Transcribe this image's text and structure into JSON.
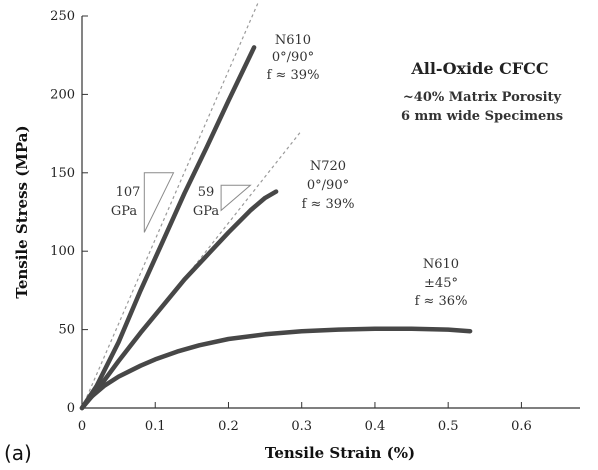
{
  "chart_data": {
    "type": "line",
    "panel_label": "(a)",
    "title": "All-Oxide CFCC",
    "subtitle_lines": [
      "~40% Matrix Porosity",
      "6 mm wide Specimens"
    ],
    "xlabel": "Tensile Strain (%)",
    "ylabel": "Tensile Stress (MPa)",
    "xlim": [
      0,
      0.68
    ],
    "ylim": [
      0,
      250
    ],
    "xticks": [
      "0",
      "0.1",
      "0.2",
      "0.3",
      "0.4",
      "0.5",
      "0.6"
    ],
    "yticks": [
      "0",
      "50",
      "100",
      "150",
      "200",
      "250"
    ],
    "grid": false,
    "series": [
      {
        "name": "N610 0°/90° f ≈ 39%",
        "label_lines": [
          "N610",
          "0°/90°",
          "f ≈ 39%"
        ],
        "x": [
          0,
          0.02,
          0.05,
          0.08,
          0.11,
          0.14,
          0.17,
          0.2,
          0.235
        ],
        "y": [
          0,
          14,
          42,
          75,
          106,
          137,
          166,
          196,
          230
        ]
      },
      {
        "name": "N720 0°/90° f ≈ 39%",
        "label_lines": [
          "N720",
          "0°/90°",
          "f ≈ 39%"
        ],
        "x": [
          0,
          0.02,
          0.05,
          0.08,
          0.11,
          0.14,
          0.17,
          0.2,
          0.23,
          0.25,
          0.265
        ],
        "y": [
          0,
          11,
          30,
          48,
          65,
          82,
          97,
          112,
          126,
          134,
          138
        ]
      },
      {
        "name": "N610 ±45° f ≈ 36%",
        "label_lines": [
          "N610",
          "±45°",
          "f ≈ 36%"
        ],
        "x": [
          0,
          0.01,
          0.03,
          0.05,
          0.08,
          0.1,
          0.13,
          0.16,
          0.2,
          0.25,
          0.3,
          0.35,
          0.4,
          0.45,
          0.5,
          0.53
        ],
        "y": [
          0,
          6,
          14,
          20,
          27,
          31,
          36,
          40,
          44,
          47,
          49,
          50,
          50.5,
          50.5,
          50,
          49
        ]
      }
    ],
    "modulus_lines": [
      {
        "x": [
          0,
          0.24
        ],
        "y": [
          0,
          258
        ]
      },
      {
        "x": [
          0,
          0.3
        ],
        "y": [
          0,
          177
        ]
      }
    ],
    "modulus_annotations": [
      {
        "value": "107",
        "unit": "GPa",
        "triangle": {
          "x0": 0.085,
          "x1": 0.125,
          "y0": 112,
          "y1": 150
        }
      },
      {
        "value": "59",
        "unit": "GPa",
        "triangle": {
          "x0": 0.19,
          "x1": 0.23,
          "y0": 126,
          "y1": 142
        }
      }
    ],
    "colors": {
      "curve": "#474747",
      "reference": "#9a9a9a",
      "axis": "#333333"
    }
  }
}
